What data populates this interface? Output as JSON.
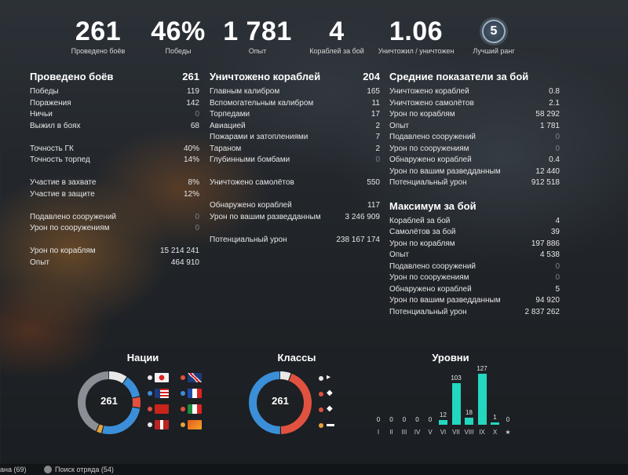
{
  "top_stats": [
    {
      "value": "261",
      "label": "Проведено боёв"
    },
    {
      "value": "46%",
      "label": "Победы"
    },
    {
      "value": "1 781",
      "label": "Опыт"
    },
    {
      "value": "4",
      "label": "Кораблей за бой"
    },
    {
      "value": "1.06",
      "label": "Уничтожил / уничтожен"
    },
    {
      "value": "5",
      "label": "Лучший ранг"
    }
  ],
  "col1": {
    "header": {
      "label": "Проведено боёв",
      "value": "261"
    },
    "rows": [
      {
        "label": "Победы",
        "value": "119"
      },
      {
        "label": "Поражения",
        "value": "142"
      },
      {
        "label": "Ничьи",
        "value": "0"
      },
      {
        "label": "Выжил в боях",
        "value": "68"
      },
      null,
      {
        "label": "Точность ГК",
        "value": "40%"
      },
      {
        "label": "Точность торпед",
        "value": "14%"
      },
      null,
      {
        "label": "Участие в захвате",
        "value": "8%"
      },
      {
        "label": "Участие в защите",
        "value": "12%"
      },
      null,
      {
        "label": "Подавлено сооружений",
        "value": "0"
      },
      {
        "label": "Урон по сооружениям",
        "value": "0"
      },
      null,
      {
        "label": "Урон по кораблям",
        "value": "15 214 241"
      },
      {
        "label": "Опыт",
        "value": "464 910"
      }
    ]
  },
  "col2": {
    "header": {
      "label": "Уничтожено кораблей",
      "value": "204"
    },
    "rows": [
      {
        "label": "Главным калибром",
        "value": "165"
      },
      {
        "label": "Вспомогательным калибром",
        "value": "11"
      },
      {
        "label": "Торпедами",
        "value": "17"
      },
      {
        "label": "Авиацией",
        "value": "2"
      },
      {
        "label": "Пожарами и затоплениями",
        "value": "7"
      },
      {
        "label": "Тараном",
        "value": "2"
      },
      {
        "label": "Глубинными бомбами",
        "value": "0"
      },
      null,
      {
        "label": "Уничтожено самолётов",
        "value": "550"
      },
      null,
      {
        "label": "Обнаружено кораблей",
        "value": "117"
      },
      {
        "label": "Урон по вашим разведданным",
        "value": "3 246 909"
      },
      null,
      {
        "label": "Потенциальный урон",
        "value": "238 167 174"
      }
    ]
  },
  "col3": {
    "header": {
      "label": "Средние показатели за бой",
      "value": ""
    },
    "rows": [
      {
        "label": "Уничтожено кораблей",
        "value": "0.8"
      },
      {
        "label": "Уничтожено самолётов",
        "value": "2.1"
      },
      {
        "label": "Урон по кораблям",
        "value": "58 292"
      },
      {
        "label": "Опыт",
        "value": "1 781"
      },
      {
        "label": "Подавлено сооружений",
        "value": "0"
      },
      {
        "label": "Урон по сооружениям",
        "value": "0"
      },
      {
        "label": "Обнаружено кораблей",
        "value": "0.4"
      },
      {
        "label": "Урон по вашим разведданным",
        "value": "12 440"
      },
      {
        "label": "Потенциальный урон",
        "value": "912 518"
      }
    ],
    "header2": {
      "label": "Максимум за бой",
      "value": ""
    },
    "rows2": [
      {
        "label": "Кораблей за бой",
        "value": "4"
      },
      {
        "label": "Самолётов за бой",
        "value": "39"
      },
      {
        "label": "Урон по кораблям",
        "value": "197 886"
      },
      {
        "label": "Опыт",
        "value": "4 538"
      },
      {
        "label": "Подавлено сооружений",
        "value": "0"
      },
      {
        "label": "Урон по сооружениям",
        "value": "0"
      },
      {
        "label": "Обнаружено кораблей",
        "value": "5"
      },
      {
        "label": "Урон по вашим разведданным",
        "value": "94 920"
      },
      {
        "label": "Потенциальный урон",
        "value": "2 837 262"
      }
    ]
  },
  "nations": {
    "title": "Нации",
    "center": "261",
    "flags": [
      {
        "name": "japan-flag",
        "dot": "#e8e8e8"
      },
      {
        "name": "uk-flag",
        "dot": "#e0523f"
      },
      {
        "name": "usa-flag",
        "dot": "#3b8fd8"
      },
      {
        "name": "france-flag",
        "dot": "#3b8fd8"
      },
      {
        "name": "ussr-flag",
        "dot": "#e0523f"
      },
      {
        "name": "italy-flag",
        "dot": "#e0523f"
      },
      {
        "name": "germany-flag",
        "dot": "#e8e8e8"
      },
      {
        "name": "pan-asia-flag",
        "dot": "#e8a33b"
      }
    ],
    "segments": [
      {
        "color": "#e8e8e8",
        "value": 0.1
      },
      {
        "color": "#3b8fd8",
        "value": 0.12
      },
      {
        "color": "#e0523f",
        "value": 0.06
      },
      {
        "color": "#3b8fd8",
        "value": 0.26
      },
      {
        "color": "#e8a33b",
        "value": 0.03
      },
      {
        "color": "#8a8f95",
        "value": 0.43
      }
    ]
  },
  "classes": {
    "title": "Классы",
    "center": "261",
    "icons": [
      {
        "name": "destroyer-icon",
        "glyph": "▸",
        "dot": "#e8e8e8"
      },
      {
        "name": "cruiser-icon",
        "glyph": "◆",
        "dot": "#e0523f"
      },
      {
        "name": "battleship-icon",
        "glyph": "◆",
        "dot": "#e0523f"
      },
      {
        "name": "carrier-icon",
        "glyph": "▬",
        "dot": "#e8a33b"
      }
    ],
    "segments": [
      {
        "color": "#e8e8e8",
        "value": 0.06
      },
      {
        "color": "#e0523f",
        "value": 0.44
      },
      {
        "color": "#3b8fd8",
        "value": 0.5
      }
    ]
  },
  "chart_data": {
    "type": "bar",
    "title": "Уровни",
    "categories": [
      "I",
      "II",
      "III",
      "IV",
      "V",
      "VI",
      "VII",
      "VIII",
      "IX",
      "X",
      "★"
    ],
    "values": [
      0,
      0,
      0,
      0,
      0,
      12,
      103,
      18,
      127,
      1,
      0
    ],
    "ylim": [
      0,
      127
    ]
  },
  "footer": {
    "left": "ана (69)",
    "right": "Поиск отряда (54)"
  }
}
